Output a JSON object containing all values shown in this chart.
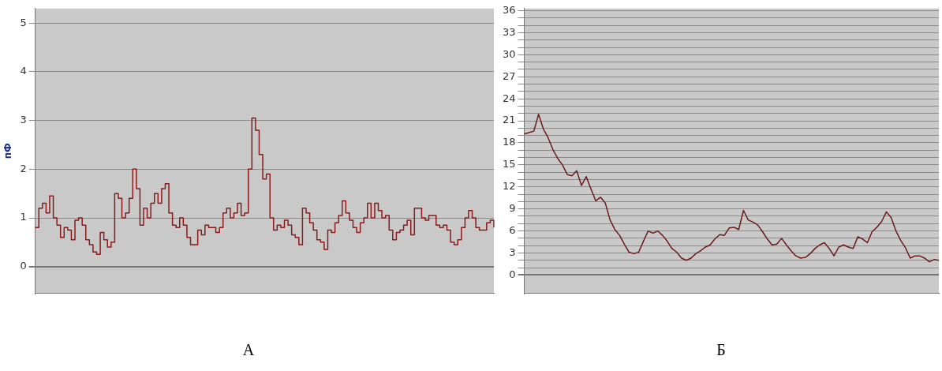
{
  "chart_data": [
    {
      "type": "step",
      "ylabel": "пФ",
      "annotations": [
        "А"
      ],
      "color": "#8b1a1a",
      "marker": "none",
      "line_style": "solid",
      "grid": "y",
      "legend": false,
      "ylim": [
        -0.55,
        5.3
      ],
      "yticks": [
        0,
        1,
        2,
        3,
        4,
        5
      ],
      "categories": [
        null,
        null,
        null,
        null,
        null,
        null,
        null,
        null,
        null,
        null,
        null,
        null,
        null,
        null,
        null,
        null,
        null,
        null,
        null,
        null,
        null,
        null,
        null,
        null,
        null,
        null,
        null,
        null,
        null,
        null,
        null,
        null,
        null,
        null,
        null,
        null,
        null,
        null,
        null,
        null,
        null,
        null,
        null,
        null,
        null,
        null,
        null,
        null,
        null,
        null,
        null,
        null,
        null,
        null,
        null,
        null,
        null,
        null,
        null,
        null,
        null,
        null,
        null,
        null,
        null,
        null,
        null,
        null,
        null,
        null,
        null,
        null,
        null,
        null,
        null,
        null,
        null,
        null,
        null,
        null,
        null,
        null,
        null,
        null,
        null,
        null,
        null,
        null,
        null,
        null,
        null,
        null,
        null,
        null,
        null,
        null,
        null,
        null,
        null,
        null,
        null,
        null,
        null,
        null,
        null,
        null,
        null,
        null,
        null,
        null,
        null,
        null,
        null,
        null,
        null,
        null,
        null,
        null,
        null,
        null,
        null,
        null,
        null,
        null,
        null,
        null,
        null,
        null
      ],
      "values": [
        0.8,
        1.2,
        1.3,
        1.1,
        1.45,
        1.0,
        0.85,
        0.6,
        0.8,
        0.75,
        0.55,
        0.95,
        1.0,
        0.85,
        0.55,
        0.45,
        0.3,
        0.25,
        0.7,
        0.55,
        0.4,
        0.5,
        1.5,
        1.4,
        1.0,
        1.1,
        1.4,
        2.0,
        1.6,
        0.85,
        1.2,
        1.0,
        1.3,
        1.5,
        1.3,
        1.6,
        1.7,
        1.1,
        0.85,
        0.8,
        1.0,
        0.85,
        0.6,
        0.45,
        0.45,
        0.75,
        0.65,
        0.85,
        0.8,
        0.8,
        0.7,
        0.8,
        1.1,
        1.2,
        1.0,
        1.1,
        1.3,
        1.05,
        1.1,
        2.0,
        3.05,
        2.8,
        2.3,
        1.8,
        1.9,
        1.0,
        0.75,
        0.85,
        0.8,
        0.95,
        0.85,
        0.65,
        0.6,
        0.45,
        1.2,
        1.1,
        0.9,
        0.75,
        0.55,
        0.5,
        0.35,
        0.75,
        0.7,
        0.9,
        1.05,
        1.35,
        1.1,
        0.95,
        0.8,
        0.7,
        0.9,
        1.0,
        1.3,
        1.0,
        1.3,
        1.15,
        1.0,
        1.05,
        0.75,
        0.55,
        0.7,
        0.75,
        0.85,
        0.95,
        0.65,
        1.2,
        1.2,
        1.0,
        0.95,
        1.05,
        1.05,
        0.85,
        0.8,
        0.85,
        0.75,
        0.5,
        0.45,
        0.55,
        0.8,
        1.0,
        1.15,
        1.0,
        0.8,
        0.75,
        0.75,
        0.9,
        0.95,
        0.8
      ]
    },
    {
      "type": "line",
      "annotations": [
        "Б"
      ],
      "color": "#6b1a1a",
      "marker": "none",
      "line_style": "solid",
      "grid": "y",
      "legend": false,
      "ylim": [
        -2.5,
        36.3
      ],
      "yticks": [
        0,
        {
          "value": 1,
          "label": null
        },
        {
          "value": 2,
          "label": null
        },
        3,
        {
          "value": 4,
          "label": null
        },
        {
          "value": 5,
          "label": null
        },
        6,
        {
          "value": 7,
          "label": null
        },
        {
          "value": 8,
          "label": null
        },
        9,
        {
          "value": 10,
          "label": null
        },
        {
          "value": 11,
          "label": null
        },
        12,
        {
          "value": 13,
          "label": null
        },
        {
          "value": 14,
          "label": null
        },
        15,
        {
          "value": 16,
          "label": null
        },
        {
          "value": 17,
          "label": null
        },
        18,
        {
          "value": 19,
          "label": null
        },
        {
          "value": 20,
          "label": null
        },
        21,
        {
          "value": 22,
          "label": null
        },
        {
          "value": 23,
          "label": null
        },
        24,
        {
          "value": 25,
          "label": null
        },
        {
          "value": 26,
          "label": null
        },
        27,
        {
          "value": 28,
          "label": null
        },
        {
          "value": 29,
          "label": null
        },
        30,
        {
          "value": 31,
          "label": null
        },
        {
          "value": 32,
          "label": null
        },
        33,
        {
          "value": 34,
          "label": null
        },
        {
          "value": 35,
          "label": null
        },
        36
      ],
      "categories": [
        null,
        null,
        null,
        null,
        null,
        null,
        null,
        null,
        null,
        null,
        null,
        null,
        null,
        null,
        null,
        null,
        null,
        null,
        null,
        null,
        null,
        null,
        null,
        null,
        null,
        null,
        null,
        null,
        null,
        null,
        null,
        null,
        null,
        null,
        null,
        null,
        null,
        null,
        null,
        null,
        null,
        null,
        null,
        null,
        null,
        null,
        null,
        null,
        null,
        null,
        null,
        null,
        null,
        null,
        null,
        null,
        null,
        null,
        null,
        null,
        null,
        null,
        null,
        null,
        null,
        null,
        null,
        null,
        null,
        null,
        null,
        null,
        null,
        null,
        null,
        null,
        null,
        null,
        null,
        null,
        null,
        null,
        null,
        null,
        null,
        null,
        null,
        null
      ],
      "values": [
        19.2,
        19.4,
        19.6,
        21.9,
        19.9,
        18.7,
        17.1,
        15.9,
        15.0,
        13.7,
        13.5,
        14.2,
        12.2,
        13.4,
        11.7,
        10.1,
        10.6,
        9.8,
        7.5,
        6.2,
        5.4,
        4.2,
        3.1,
        2.9,
        3.1,
        4.6,
        6.0,
        5.7,
        6.0,
        5.4,
        4.6,
        3.6,
        3.1,
        2.3,
        2.0,
        2.3,
        2.9,
        3.3,
        3.8,
        4.1,
        4.9,
        5.5,
        5.4,
        6.4,
        6.5,
        6.2,
        8.8,
        7.5,
        7.2,
        6.8,
        5.9,
        4.9,
        4.1,
        4.2,
        5.0,
        4.1,
        3.3,
        2.6,
        2.3,
        2.4,
        2.9,
        3.6,
        4.1,
        4.4,
        3.6,
        2.6,
        3.8,
        4.1,
        3.8,
        3.6,
        5.2,
        4.9,
        4.4,
        5.9,
        6.5,
        7.3,
        8.6,
        7.8,
        6.0,
        4.7,
        3.7,
        2.3,
        2.6,
        2.6,
        2.3,
        1.8,
        2.1,
        2.0
      ]
    }
  ]
}
